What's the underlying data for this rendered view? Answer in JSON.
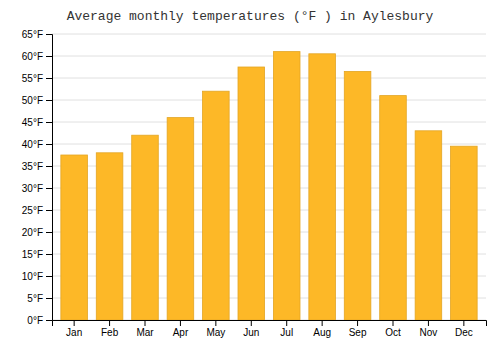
{
  "chart_data": {
    "type": "bar",
    "title": "Average monthly temperatures (°F ) in Aylesbury",
    "categories": [
      "Jan",
      "Feb",
      "Mar",
      "Apr",
      "May",
      "Jun",
      "Jul",
      "Aug",
      "Sep",
      "Oct",
      "Nov",
      "Dec"
    ],
    "values": [
      37.5,
      38.0,
      42.0,
      46.0,
      52.0,
      57.5,
      61.0,
      60.5,
      56.5,
      51.0,
      43.0,
      39.5
    ],
    "color": "#FDB827",
    "ylim": [
      0,
      65
    ],
    "yticks": [
      {
        "value": 0,
        "label": "0°F"
      },
      {
        "value": 5,
        "label": "5°F"
      },
      {
        "value": 10,
        "label": "10°F"
      },
      {
        "value": 15,
        "label": "15°F"
      },
      {
        "value": 20,
        "label": "20°F"
      },
      {
        "value": 25,
        "label": "25°F"
      },
      {
        "value": 30,
        "label": "30°F"
      },
      {
        "value": 35,
        "label": "35°F"
      },
      {
        "value": 40,
        "label": "40°F"
      },
      {
        "value": 45,
        "label": "45°F"
      },
      {
        "value": 50,
        "label": "50°F"
      },
      {
        "value": 55,
        "label": "55°F"
      },
      {
        "value": 60,
        "label": "60°F"
      },
      {
        "value": 65,
        "label": "65°F"
      }
    ],
    "grid": true
  }
}
